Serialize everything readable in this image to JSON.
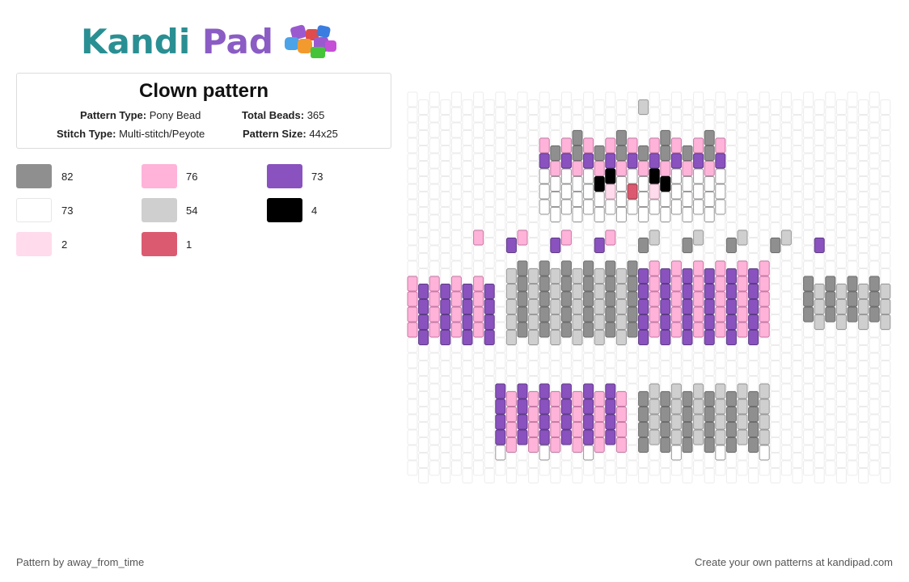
{
  "logo": {
    "word1": "Kandi",
    "word2": "Pad"
  },
  "title": "Clown pattern",
  "info": {
    "pattern_type_label": "Pattern Type:",
    "pattern_type": "Pony Bead",
    "total_beads_label": "Total Beads:",
    "total_beads": "365",
    "stitch_type_label": "Stitch Type:",
    "stitch_type": "Multi-stitch/Peyote",
    "pattern_size_label": "Pattern Size:",
    "pattern_size": "44x25"
  },
  "palette": [
    {
      "color": "#8f8f8f",
      "count": "82"
    },
    {
      "color": "#ffb3d9",
      "count": "76"
    },
    {
      "color": "#8a52be",
      "count": "73"
    },
    {
      "color": "#ffffff",
      "count": "73"
    },
    {
      "color": "#cfcfcf",
      "count": "54"
    },
    {
      "color": "#000000",
      "count": "4"
    },
    {
      "color": "#ffdbec",
      "count": "2"
    },
    {
      "color": "#dc5a70",
      "count": "1"
    }
  ],
  "footer": {
    "credit": "Pattern by away_from_time",
    "promo": "Create your own patterns at kandipad.com"
  }
}
